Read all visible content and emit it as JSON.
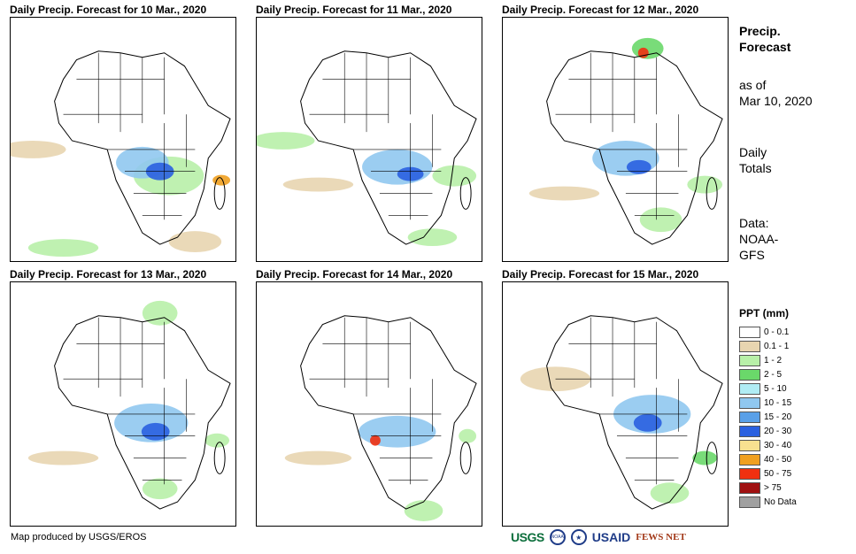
{
  "panels": [
    {
      "title": "Daily Precip. Forecast for 10 Mar., 2020"
    },
    {
      "title": "Daily Precip. Forecast for 11 Mar., 2020"
    },
    {
      "title": "Daily Precip. Forecast for 12 Mar., 2020"
    },
    {
      "title": "Daily Precip. Forecast for 13 Mar., 2020"
    },
    {
      "title": "Daily Precip. Forecast for 14 Mar., 2020"
    },
    {
      "title": "Daily Precip. Forecast for 15 Mar., 2020"
    }
  ],
  "sidebar": {
    "title_line1": "Precip.",
    "title_line2": "Forecast",
    "asof_line1": "as of",
    "asof_line2": "Mar 10, 2020",
    "totals_line1": "Daily",
    "totals_line2": "Totals",
    "data_line1": "Data:",
    "data_line2": "NOAA-",
    "data_line3": "GFS"
  },
  "legend": {
    "title": "PPT (mm)",
    "items": [
      {
        "label": "0 - 0.1",
        "color": "#ffffff"
      },
      {
        "label": "0.1 - 1",
        "color": "#e8d5b0"
      },
      {
        "label": "1 - 2",
        "color": "#b8f0a8"
      },
      {
        "label": "2 - 5",
        "color": "#6ad86a"
      },
      {
        "label": "5 - 10",
        "color": "#b0ecf4"
      },
      {
        "label": "10 - 15",
        "color": "#90c8f0"
      },
      {
        "label": "15 - 20",
        "color": "#5aa0e8"
      },
      {
        "label": "20 - 30",
        "color": "#2a60e0"
      },
      {
        "label": "30 - 40",
        "color": "#f8e090"
      },
      {
        "label": "40 - 50",
        "color": "#f0a020"
      },
      {
        "label": "50 - 75",
        "color": "#f03010"
      },
      {
        "label": "> 75",
        "color": "#a01010"
      },
      {
        "label": "No Data",
        "color": "#a0a0a0"
      }
    ]
  },
  "footer": {
    "credit": "Map produced by USGS/EROS"
  },
  "logos": {
    "usgs": "USGS",
    "noaa": "NOAA",
    "usaid": "USAID",
    "fews": "FEWS NET"
  }
}
